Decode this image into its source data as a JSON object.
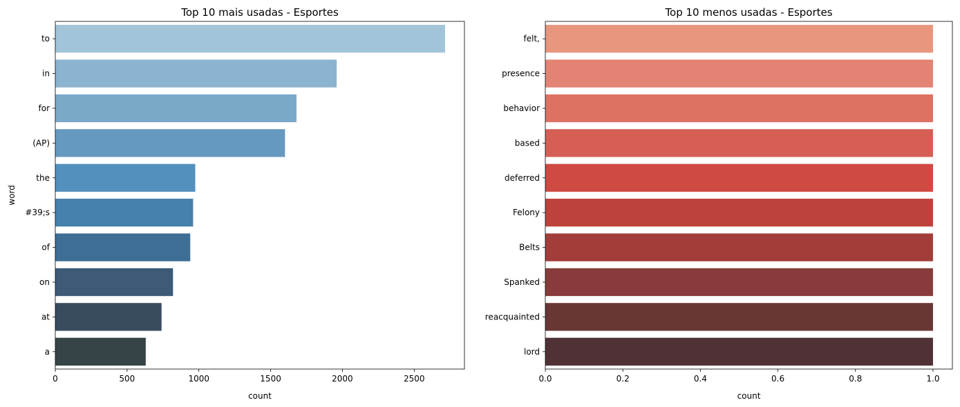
{
  "chart_data": [
    {
      "type": "bar",
      "orientation": "horizontal",
      "title": "Top 10 mais usadas - Esportes",
      "xlabel": "count",
      "ylabel": "word",
      "xlim": [
        0,
        2850
      ],
      "xticks": [
        "0",
        "500",
        "1000",
        "1500",
        "2000",
        "2500"
      ],
      "categories": [
        "to",
        "in",
        "for",
        "(AP)",
        "the",
        "#39;s",
        "of",
        "on",
        "at",
        "a"
      ],
      "values": [
        2715,
        1960,
        1680,
        1600,
        975,
        960,
        940,
        820,
        740,
        630
      ],
      "colors": [
        "#a2c4d9",
        "#8cb3cf",
        "#7aa8c9",
        "#6699c0",
        "#5490bd",
        "#4680ac",
        "#3e6e93",
        "#3d5b77",
        "#384b5f",
        "#364347"
      ]
    },
    {
      "type": "bar",
      "orientation": "horizontal",
      "title": "Top 10 menos usadas - Esportes",
      "xlabel": "count",
      "ylabel": "",
      "xlim": [
        0,
        1.05
      ],
      "xticks": [
        "0.0",
        "0.2",
        "0.4",
        "0.6",
        "0.8",
        "1.0"
      ],
      "categories": [
        "felt,",
        "presence",
        "behavior",
        "based",
        "deferred",
        "Felony",
        "Belts",
        "Spanked",
        "reacquainted",
        "lord"
      ],
      "values": [
        1,
        1,
        1,
        1,
        1,
        1,
        1,
        1,
        1,
        1
      ],
      "colors": [
        "#e9967f",
        "#e28373",
        "#dd7263",
        "#d65f55",
        "#cf4a42",
        "#bd423b",
        "#a33d3a",
        "#873b3a",
        "#693636",
        "#503236"
      ]
    }
  ]
}
